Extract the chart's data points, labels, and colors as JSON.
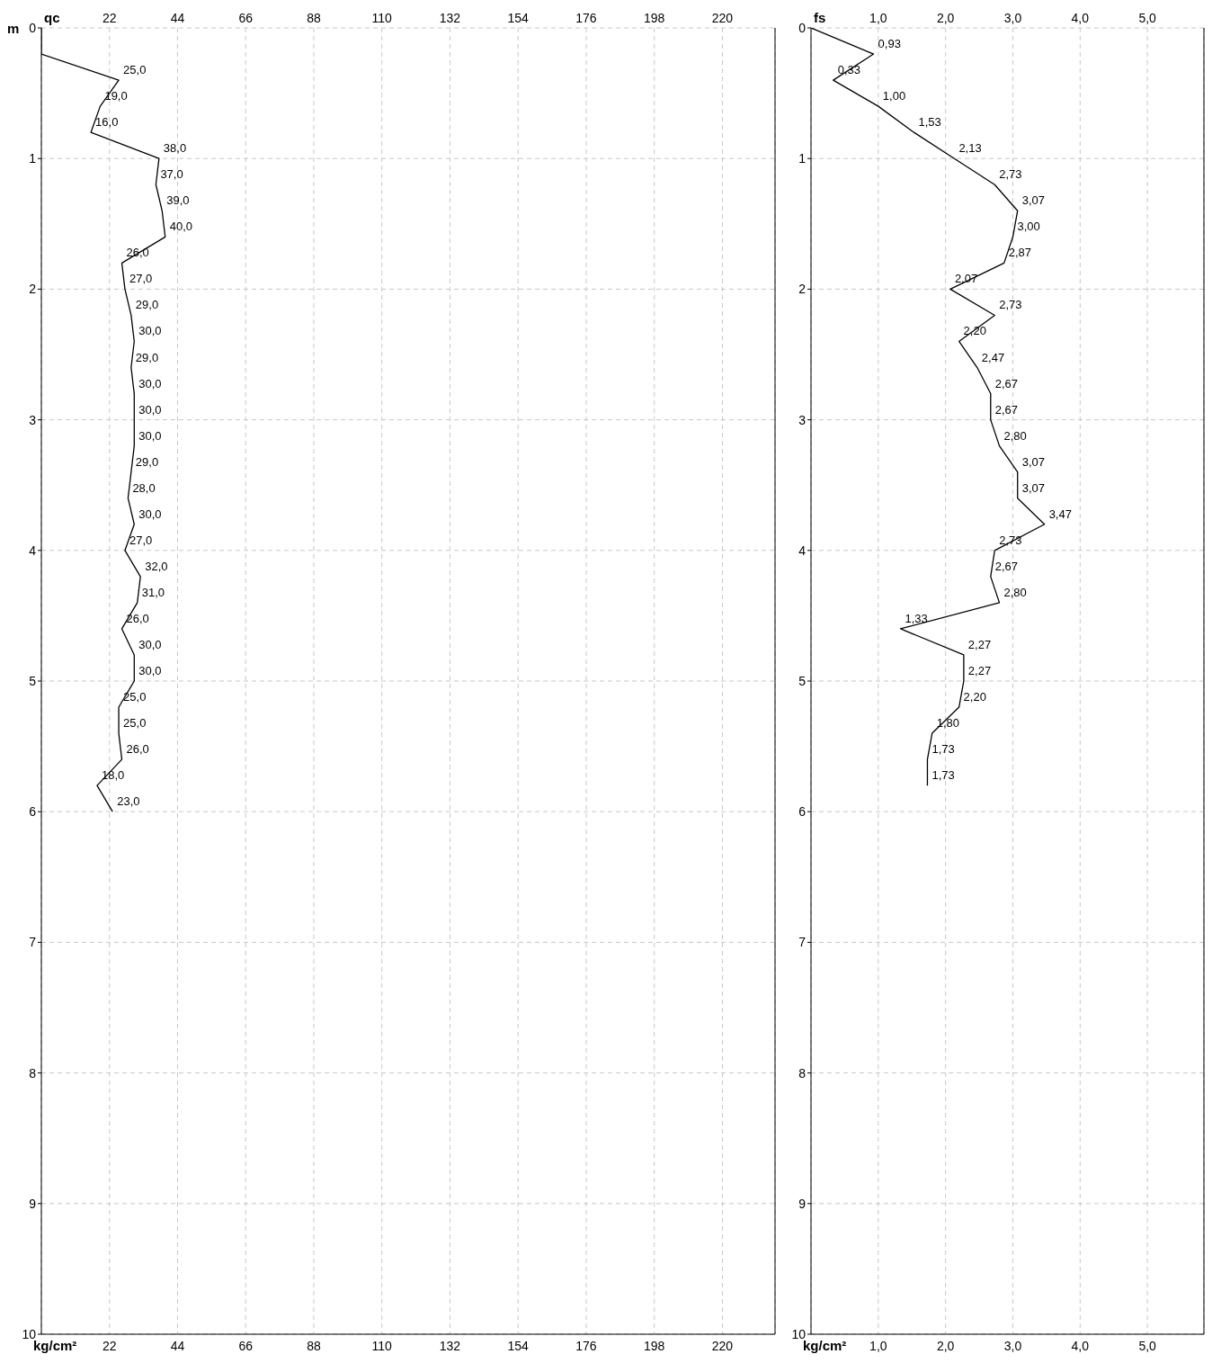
{
  "chart_data": [
    {
      "type": "line",
      "orientation": "horizontal",
      "x2label": "qc",
      "xlabel": "kg/cm²",
      "ylabel": "m",
      "xlim": [
        0,
        237
      ],
      "xticks": [
        22,
        44,
        66,
        88,
        110,
        132,
        154,
        176,
        198,
        220
      ],
      "x2lim": [
        0,
        237
      ],
      "x2ticks": [
        22,
        44,
        66,
        88,
        110,
        132,
        154,
        176,
        198,
        220
      ],
      "ylim": [
        10,
        0
      ],
      "yticks": [
        0,
        1,
        2,
        3,
        4,
        5,
        6,
        7,
        8,
        9,
        10
      ],
      "grid": true,
      "marker": "none",
      "series": [
        {
          "color": "#000000",
          "x": [
            0,
            0.2,
            0.4,
            0.6,
            0.8,
            1.0,
            1.2,
            1.4,
            1.6,
            1.8,
            2.0,
            2.2,
            2.4,
            2.6,
            2.8,
            3.0,
            3.2,
            3.4,
            3.6,
            3.8,
            4.0,
            4.2,
            4.4,
            4.6,
            4.8,
            5.0,
            5.2,
            5.4,
            5.6,
            5.8,
            6.0
          ],
          "values": [
            0,
            0,
            25,
            19,
            16,
            38,
            37,
            39,
            40,
            26,
            27,
            29,
            30,
            29,
            30,
            30,
            30,
            29,
            28,
            30,
            27,
            32,
            31,
            26,
            30,
            30,
            25,
            25,
            26,
            18,
            23
          ],
          "value_labels": [
            null,
            null,
            "25,0",
            "19,0",
            "16,0",
            "38,0",
            "37,0",
            "39,0",
            "40,0",
            "26,0",
            "27,0",
            "29,0",
            "30,0",
            "29,0",
            "30,0",
            "30,0",
            "30,0",
            "29,0",
            "28,0",
            "30,0",
            "27,0",
            "32,0",
            "31,0",
            "26,0",
            "30,0",
            "30,0",
            "25,0",
            "25,0",
            "26,0",
            "18,0",
            "23,0"
          ]
        }
      ]
    },
    {
      "type": "line",
      "orientation": "horizontal",
      "x2label": "fs",
      "xlabel": "kg/cm²",
      "xlim": [
        0,
        5.84
      ],
      "xticks": [
        {
          "value": 1,
          "label": "1,0"
        },
        {
          "value": 2,
          "label": "2,0"
        },
        {
          "value": 3,
          "label": "3,0"
        },
        {
          "value": 4,
          "label": "4,0"
        },
        {
          "value": 5,
          "label": "5,0"
        }
      ],
      "x2lim": [
        0,
        5.84
      ],
      "x2ticks": [
        {
          "value": 1,
          "label": "1,0"
        },
        {
          "value": 2,
          "label": "2,0"
        },
        {
          "value": 3,
          "label": "3,0"
        },
        {
          "value": 4,
          "label": "4,0"
        },
        {
          "value": 5,
          "label": "5,0"
        }
      ],
      "ylim": [
        10,
        0
      ],
      "yticks": [
        0,
        1,
        2,
        3,
        4,
        5,
        6,
        7,
        8,
        9,
        10
      ],
      "grid": true,
      "marker": "none",
      "series": [
        {
          "color": "#000000",
          "x": [
            0,
            0.2,
            0.4,
            0.6,
            0.8,
            1.0,
            1.2,
            1.4,
            1.6,
            1.8,
            2.0,
            2.2,
            2.4,
            2.6,
            2.8,
            3.0,
            3.2,
            3.4,
            3.6,
            3.8,
            4.0,
            4.2,
            4.4,
            4.6,
            4.8,
            5.0,
            5.2,
            5.4,
            5.6,
            5.8
          ],
          "values": [
            0,
            0.93,
            0.33,
            1.0,
            1.53,
            2.13,
            2.73,
            3.07,
            3.0,
            2.87,
            2.07,
            2.73,
            2.2,
            2.47,
            2.67,
            2.67,
            2.8,
            3.07,
            3.07,
            3.47,
            2.73,
            2.67,
            2.8,
            1.33,
            2.27,
            2.27,
            2.2,
            1.8,
            1.73,
            1.73
          ],
          "value_labels": [
            null,
            "0,93",
            "0,33",
            "1,00",
            "1,53",
            "2,13",
            "2,73",
            "3,07",
            "3,00",
            "2,87",
            "2,07",
            "2,73",
            "2,20",
            "2,47",
            "2,67",
            "2,67",
            "2,80",
            "3,07",
            "3,07",
            "3,47",
            "2,73",
            "2,67",
            "2,80",
            "1,33",
            "2,27",
            "2,27",
            "2,20",
            "1,80",
            "1,73",
            "1,73"
          ]
        }
      ]
    }
  ]
}
